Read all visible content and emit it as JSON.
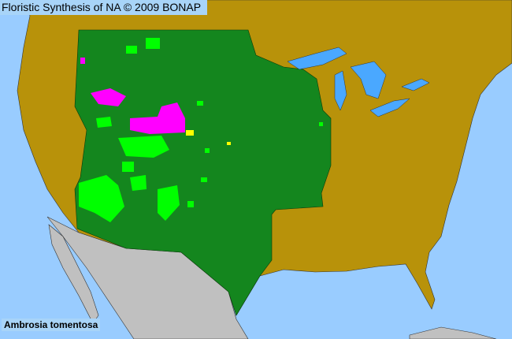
{
  "map": {
    "title": "Floristic Synthesis of NA © 2009 BONAP",
    "species": "Ambrosia tomentosa",
    "colors": {
      "ocean": "#99ccff",
      "not_present": "#b8920a",
      "present_in_state": "#14861e",
      "present_in_county": "#00ff00",
      "noxious_or_rare": "#ff00ff",
      "adventive": "#ffff00",
      "outside_range": "#c0c0c0",
      "lakes": "#4aa8ff"
    }
  }
}
